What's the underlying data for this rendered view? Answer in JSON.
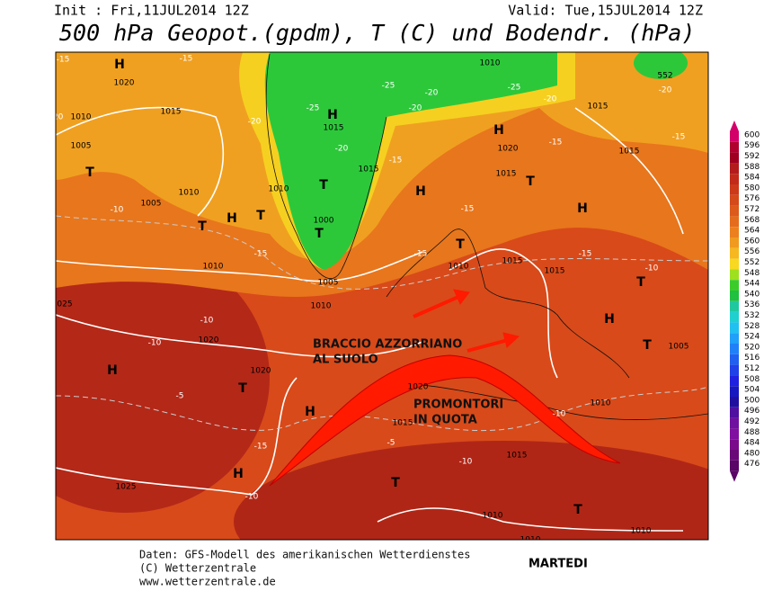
{
  "header": {
    "init": "Init : Fri,11JUL2014 12Z",
    "valid": "Valid: Tue,15JUL2014 12Z",
    "title": "500 hPa Geopot.(gpdm), T (C) und Bodendr. (hPa)"
  },
  "legend": {
    "ticks": [
      600,
      596,
      592,
      588,
      584,
      580,
      576,
      572,
      568,
      564,
      560,
      556,
      552,
      548,
      544,
      540,
      536,
      532,
      528,
      524,
      520,
      516,
      512,
      508,
      504,
      500,
      496,
      492,
      488,
      484,
      480,
      476
    ],
    "colors": [
      "#d4006a",
      "#b00030",
      "#a00020",
      "#b31c1c",
      "#c22a1a",
      "#cc3a1a",
      "#d44a1a",
      "#dc5a1c",
      "#e46c1c",
      "#ec801e",
      "#f09a20",
      "#f5b820",
      "#f8d820",
      "#9ee01e",
      "#3ccc2a",
      "#20c040",
      "#20c8a0",
      "#20d0d0",
      "#20c0f0",
      "#20a0f8",
      "#2080f8",
      "#2060f0",
      "#2040e8",
      "#2020e0",
      "#1818c0",
      "#2010a0",
      "#5010a0",
      "#7010a0",
      "#8010a0",
      "#7a0a8a",
      "#6a0878",
      "#5a0666"
    ]
  },
  "map": {
    "centers": [
      "H",
      "T",
      "T",
      "H",
      "T",
      "H",
      "T",
      "T",
      "H",
      "H",
      "T",
      "H",
      "T",
      "T",
      "H",
      "H",
      "H",
      "T",
      "T",
      "H",
      "T",
      "T"
    ],
    "isobar_labels": [
      "1020",
      "1015",
      "1010",
      "1005",
      "1010",
      "1005",
      "1010",
      "1015",
      "1010",
      "1000",
      "1005",
      "1010",
      "1015",
      "1015",
      "1020",
      "1015",
      "1010",
      "1020",
      "1020",
      "025",
      "1025",
      "1020",
      "1015",
      "1015",
      "1010",
      "1010",
      "1010",
      "1005",
      "1015",
      "1015",
      "1010",
      "1010",
      "1015",
      "552"
    ],
    "temperature_labels": [
      "-15",
      "-20",
      "-25",
      "-25",
      "-20",
      "-25",
      "-20",
      "-15",
      "-15",
      "-10",
      "-15",
      "-15",
      "-10",
      "-10",
      "-10",
      "-10",
      "-15",
      "-10",
      "-5",
      "-5",
      "-15",
      "-10",
      "-15",
      "-20",
      "-20",
      "-20",
      "-20",
      "-15",
      "-15"
    ]
  },
  "annotations": [
    "BRACCIO AZZORRIANO",
    "AL SUOLO",
    "PROMONTORI",
    "IN QUOTA"
  ],
  "footer": {
    "lines": [
      "Daten: GFS-Modell des amerikanischen Wetterdienstes",
      "(C) Wetterzentrale",
      "www.wetterzentrale.de"
    ],
    "day": "MARTEDI"
  }
}
